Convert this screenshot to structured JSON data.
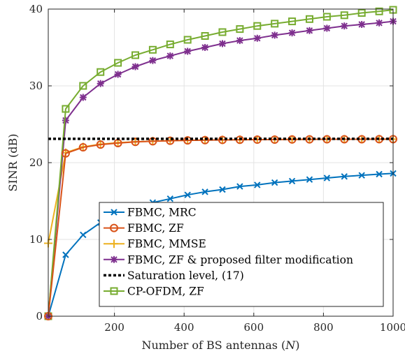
{
  "chart_data": {
    "type": "line",
    "xlabel": "Number of BS antennas (",
    "xlabel_var": "N",
    "xlabel_end": ")",
    "ylabel": "SINR (dB)",
    "xlim": [
      10,
      1000
    ],
    "ylim": [
      0,
      40
    ],
    "xticks": [
      200,
      400,
      600,
      800,
      1000
    ],
    "yticks": [
      0,
      10,
      20,
      30,
      40
    ],
    "xtick_labels": [
      "200",
      "400",
      "600",
      "800",
      "1000"
    ],
    "ytick_labels": [
      "0",
      "10",
      "20",
      "30",
      "40"
    ],
    "grid": true,
    "legend_position": "bottom-right",
    "x": [
      10,
      60,
      110,
      160,
      210,
      260,
      310,
      360,
      410,
      460,
      510,
      560,
      610,
      660,
      710,
      760,
      810,
      860,
      910,
      960,
      1000
    ],
    "series": [
      {
        "name": "FBMC, MRC",
        "color": "#0072BD",
        "marker": "x",
        "values": [
          0,
          8.0,
          10.6,
          12.2,
          13.4,
          14.2,
          14.8,
          15.3,
          15.8,
          16.2,
          16.5,
          16.9,
          17.1,
          17.4,
          17.6,
          17.8,
          18.0,
          18.2,
          18.35,
          18.5,
          18.6
        ]
      },
      {
        "name": "FBMC, ZF",
        "color": "#D95319",
        "marker": "circle",
        "values": [
          0,
          21.2,
          22.0,
          22.35,
          22.55,
          22.7,
          22.78,
          22.85,
          22.9,
          22.93,
          22.96,
          22.98,
          23.0,
          23.0,
          23.02,
          23.03,
          23.04,
          23.05,
          23.05,
          23.06,
          23.06
        ]
      },
      {
        "name": "FBMC, MMSE",
        "color": "#EDB120",
        "marker": "plus",
        "values": [
          9.5,
          21.3,
          22.05,
          22.4,
          22.6,
          22.72,
          22.8,
          22.86,
          22.91,
          22.94,
          22.97,
          22.99,
          23.0,
          23.01,
          23.02,
          23.03,
          23.04,
          23.05,
          23.05,
          23.06,
          23.06
        ]
      },
      {
        "name": "FBMC, ZF & proposed filter modification",
        "color": "#7E2F8E",
        "marker": "star",
        "values": [
          0,
          25.5,
          28.5,
          30.3,
          31.5,
          32.5,
          33.3,
          33.9,
          34.5,
          35.0,
          35.5,
          35.9,
          36.2,
          36.6,
          36.9,
          37.2,
          37.5,
          37.8,
          38.0,
          38.2,
          38.4
        ]
      },
      {
        "name": "Saturation level, (17)",
        "color": "#000000",
        "marker": "none",
        "dashed": true,
        "constant": 23.1
      },
      {
        "name": "CP-OFDM, ZF",
        "color": "#77AC30",
        "marker": "square",
        "values": [
          0,
          27.0,
          30.0,
          31.8,
          33.0,
          34.0,
          34.7,
          35.4,
          36.0,
          36.5,
          37.0,
          37.4,
          37.8,
          38.1,
          38.4,
          38.7,
          39.0,
          39.2,
          39.5,
          39.7,
          39.9
        ]
      }
    ]
  }
}
